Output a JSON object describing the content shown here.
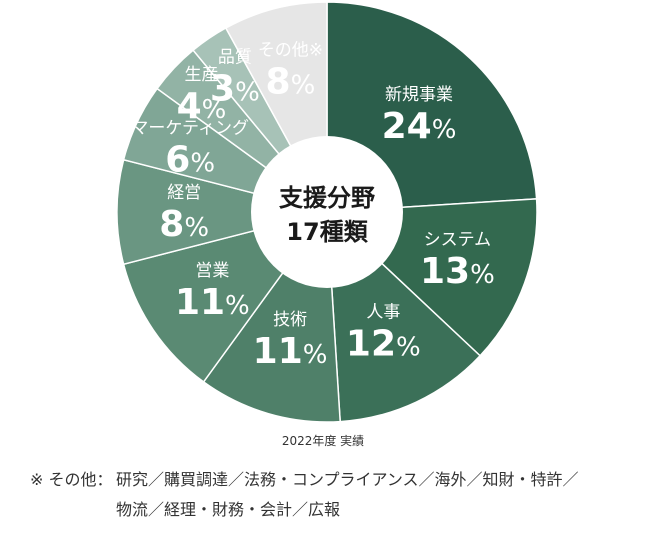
{
  "chart_data": {
    "type": "pie",
    "variant": "donut",
    "title": "支援分野 17種類",
    "center_label": {
      "line1": "支援分野",
      "line2_number": "17",
      "line2_unit": "種類"
    },
    "caption": "2022年度 実績",
    "categories": [
      "新規事業",
      "システム",
      "人事",
      "技術",
      "営業",
      "経営",
      "マーケティング",
      "生産",
      "品質",
      "その他"
    ],
    "values": [
      24,
      13,
      12,
      11,
      11,
      8,
      6,
      4,
      3,
      8
    ],
    "unit": "%",
    "colors": [
      "#2b5e4b",
      "#33694f",
      "#3b7058",
      "#4f8069",
      "#5a8a73",
      "#6a9682",
      "#80a696",
      "#92b3a5",
      "#a7c2b7",
      "#e6e6e6"
    ],
    "label_colors": [
      "#ffffff",
      "#ffffff",
      "#ffffff",
      "#ffffff",
      "#ffffff",
      "#ffffff",
      "#ffffff",
      "#ffffff",
      "#ffffff",
      "#555555"
    ],
    "annotation": {
      "target": "その他",
      "mark": "※"
    }
  },
  "labels": {
    "slices": [
      {
        "name": "新規事業",
        "pct": "24",
        "sign": "%"
      },
      {
        "name": "システム",
        "pct": "13",
        "sign": "%"
      },
      {
        "name": "人事",
        "pct": "12",
        "sign": "%"
      },
      {
        "name": "技術",
        "pct": "11",
        "sign": "%"
      },
      {
        "name": "営業",
        "pct": "11",
        "sign": "%"
      },
      {
        "name": "経営",
        "pct": "8",
        "sign": "%"
      },
      {
        "name": "マーケティング",
        "pct": "6",
        "sign": "%"
      },
      {
        "name": "生産",
        "pct": "4",
        "sign": "%"
      },
      {
        "name": "品質",
        "pct": "3",
        "sign": "%"
      },
      {
        "name": "その他",
        "pct": "8",
        "sign": "%",
        "mark": "※"
      }
    ]
  },
  "center": {
    "line1": "支援分野",
    "line2": "17種類"
  },
  "caption": "2022年度 実績",
  "note": {
    "mark": "※ その他：",
    "line1": "研究／購買調達／法務・コンプライアンス／海外／知財・特許／",
    "line2": "物流／経理・財務・会計／広報"
  }
}
